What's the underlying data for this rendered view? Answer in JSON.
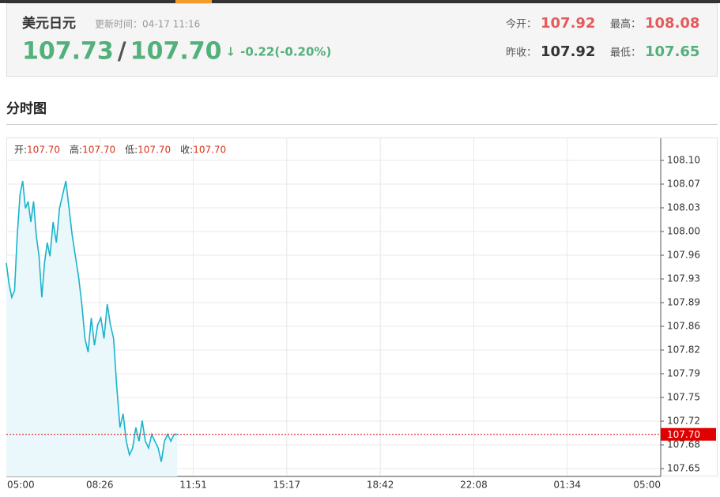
{
  "header": {
    "name": "美元日元",
    "update_time": "更新时间：04-17 11:16",
    "bid": "107.73",
    "separator": "/",
    "ask": "107.70",
    "arrow": "↓",
    "change": "-0.22(-0.20%)",
    "color": "#52b07b",
    "stats": [
      {
        "label": "今开：",
        "value": "107.92",
        "color": "#e55b5b"
      },
      {
        "label": "最高：",
        "value": "108.08",
        "color": "#e55b5b"
      },
      {
        "label": "昨收：",
        "value": "107.92",
        "color": "#333333"
      },
      {
        "label": "最低：",
        "value": "107.65",
        "color": "#52b07b"
      }
    ]
  },
  "section_title": "分时图",
  "chart_data": {
    "type": "line",
    "color": "#1ab3cc",
    "fill": "#eaf8fb",
    "grid": true,
    "info": [
      {
        "label": "开:",
        "value": "107.70"
      },
      {
        "label": "高:",
        "value": "107.70"
      },
      {
        "label": "低:",
        "value": "107.70"
      },
      {
        "label": "收:",
        "value": "107.70"
      }
    ],
    "x": [
      "05:00",
      "05:06",
      "05:12",
      "05:18",
      "05:24",
      "05:30",
      "05:36",
      "05:42",
      "05:48",
      "05:54",
      "06:00",
      "06:06",
      "06:12",
      "06:18",
      "06:24",
      "06:30",
      "06:36",
      "06:43",
      "06:50",
      "06:57",
      "07:04",
      "07:11",
      "07:18",
      "07:25",
      "07:32",
      "07:39",
      "07:46",
      "07:53",
      "08:00",
      "08:07",
      "08:14",
      "08:21",
      "08:28",
      "08:35",
      "08:42",
      "08:49",
      "08:56",
      "09:03",
      "09:10",
      "09:17",
      "09:24",
      "09:31",
      "09:38",
      "09:45",
      "09:52",
      "09:59",
      "10:06",
      "10:13",
      "10:20",
      "10:27",
      "10:34",
      "10:41",
      "10:48",
      "10:55",
      "11:02",
      "11:09",
      "11:16"
    ],
    "values": [
      107.95,
      107.92,
      107.9,
      107.91,
      107.99,
      108.05,
      108.07,
      108.03,
      108.04,
      108.01,
      108.04,
      107.99,
      107.96,
      107.9,
      107.95,
      107.98,
      107.96,
      108.01,
      107.98,
      108.03,
      108.05,
      108.07,
      108.03,
      107.99,
      107.96,
      107.93,
      107.89,
      107.84,
      107.82,
      107.87,
      107.83,
      107.86,
      107.87,
      107.84,
      107.89,
      107.86,
      107.84,
      107.77,
      107.71,
      107.73,
      107.69,
      107.67,
      107.68,
      107.71,
      107.69,
      107.72,
      107.69,
      107.68,
      107.7,
      107.69,
      107.68,
      107.66,
      107.69,
      107.7,
      107.69,
      107.7,
      107.7
    ],
    "ylim": [
      107.6385,
      108.1323
    ],
    "yticks": [
      {
        "value": 107.65,
        "label": "107.65"
      },
      {
        "value": 107.6846,
        "label": "107.68"
      },
      {
        "value": 107.7192,
        "label": "107.72"
      },
      {
        "value": 107.7538,
        "label": "107.75"
      },
      {
        "value": 107.7885,
        "label": "107.79"
      },
      {
        "value": 107.8231,
        "label": "107.82"
      },
      {
        "value": 107.8577,
        "label": "107.86"
      },
      {
        "value": 107.8923,
        "label": "107.89"
      },
      {
        "value": 107.9269,
        "label": "107.93"
      },
      {
        "value": 107.9615,
        "label": "107.96"
      },
      {
        "value": 107.9962,
        "label": "108.00"
      },
      {
        "value": 108.0308,
        "label": "108.03"
      },
      {
        "value": 108.0654,
        "label": "108.07"
      },
      {
        "value": 108.1,
        "label": "108.10"
      }
    ],
    "xticks": [
      "05:00",
      "08:26",
      "11:51",
      "15:17",
      "18:42",
      "22:08",
      "01:34",
      "05:00"
    ],
    "last": {
      "value": 107.7,
      "label": "107.70",
      "color": "#e00000"
    }
  }
}
